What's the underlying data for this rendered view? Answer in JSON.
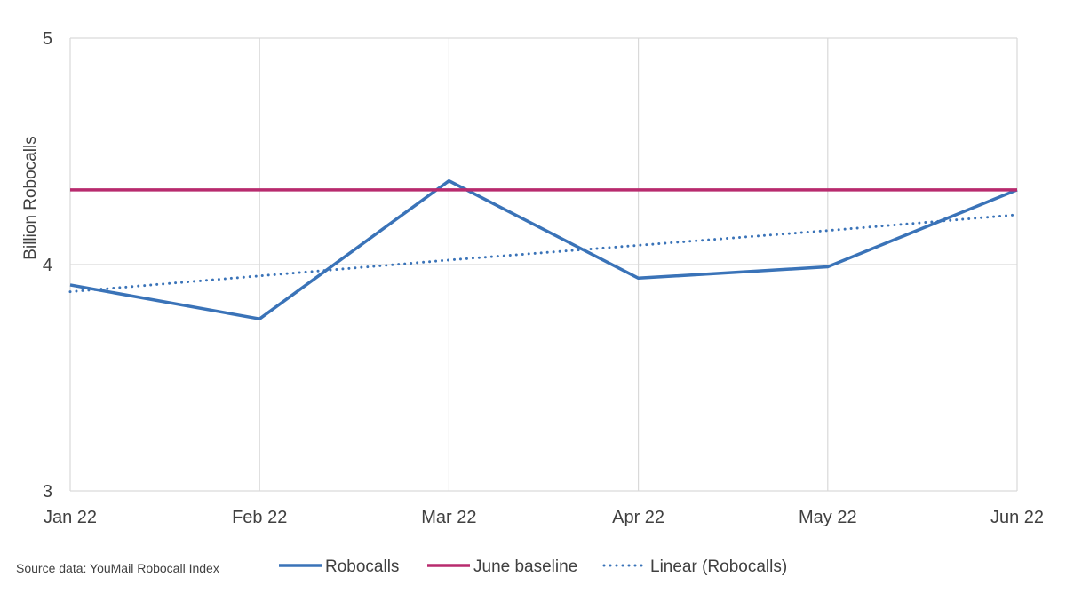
{
  "chart_data": {
    "type": "line",
    "categories": [
      "Jan 22",
      "Feb 22",
      "Mar 22",
      "Apr 22",
      "May 22",
      "Jun 22"
    ],
    "ylabel": "Billion Robocalls",
    "xlabel": "",
    "ylim": [
      3,
      5
    ],
    "yticks": [
      3,
      4,
      5
    ],
    "grid": "vertical at categories, horizontal at y ticks",
    "series": [
      {
        "name": "Robocalls",
        "values": [
          3.91,
          3.76,
          4.37,
          3.94,
          3.99,
          4.33
        ],
        "color": "#3a73b8",
        "style": "solid"
      },
      {
        "name": "June baseline",
        "values": [
          4.33,
          4.33,
          4.33,
          4.33,
          4.33,
          4.33
        ],
        "color": "#b82b6e",
        "style": "solid"
      },
      {
        "name": "Linear (Robocalls)",
        "values": [
          3.88,
          3.95,
          4.02,
          4.085,
          4.15,
          4.22
        ],
        "color": "#3a73b8",
        "style": "dotted"
      }
    ],
    "legend_position": "bottom",
    "source_note": "Source data: YouMail Robocall Index"
  }
}
